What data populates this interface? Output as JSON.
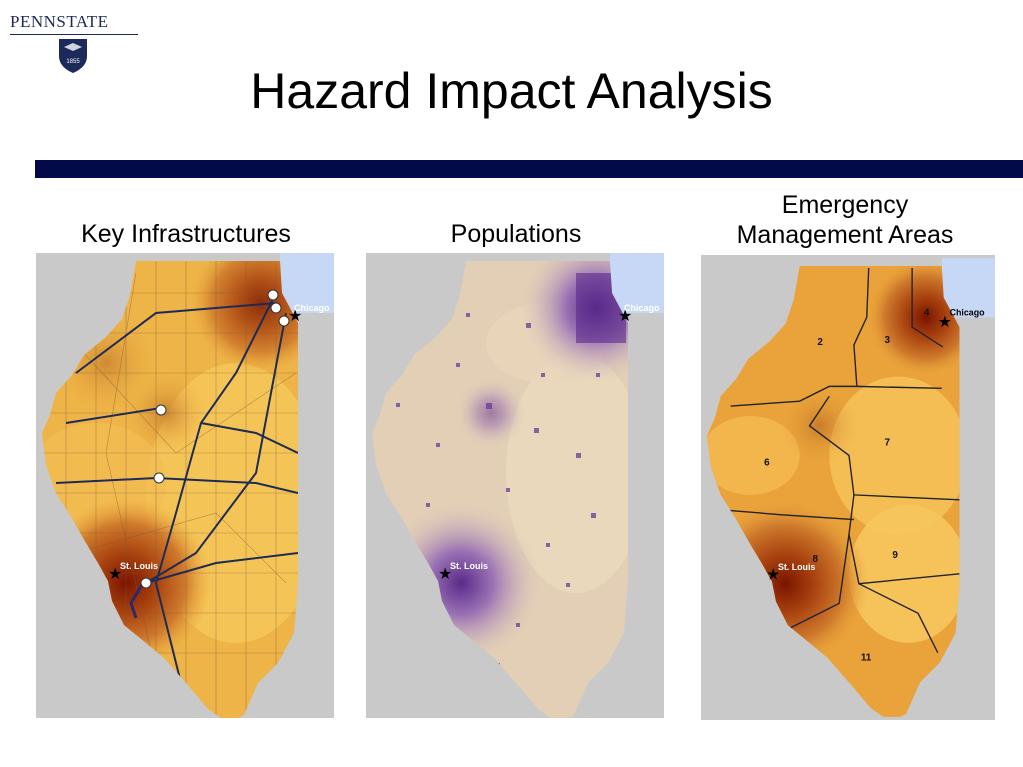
{
  "logo": {
    "wordmark": "PENNSTATE",
    "year": "1855"
  },
  "title": "Hazard Impact Analysis",
  "colors": {
    "header_bar": "#020a4a",
    "lake": "#c6d8f5",
    "background": "#c9c9c9"
  },
  "panels": [
    {
      "caption": "Key Infrastructures",
      "city_labels": {
        "chicago": "Chicago",
        "st_louis": "St. Louis"
      },
      "icons": [
        "airport-icon",
        "star-icon"
      ]
    },
    {
      "caption": "Populations",
      "city_labels": {
        "chicago": "Chicago",
        "st_louis": "St. Louis"
      }
    },
    {
      "caption_line1": "Emergency",
      "caption_line2": "Management Areas",
      "city_labels": {
        "chicago": "Chicago",
        "st_louis": "St. Louis"
      },
      "areas": [
        "2",
        "3",
        "4",
        "6",
        "7",
        "8",
        "9",
        "11"
      ]
    }
  ]
}
